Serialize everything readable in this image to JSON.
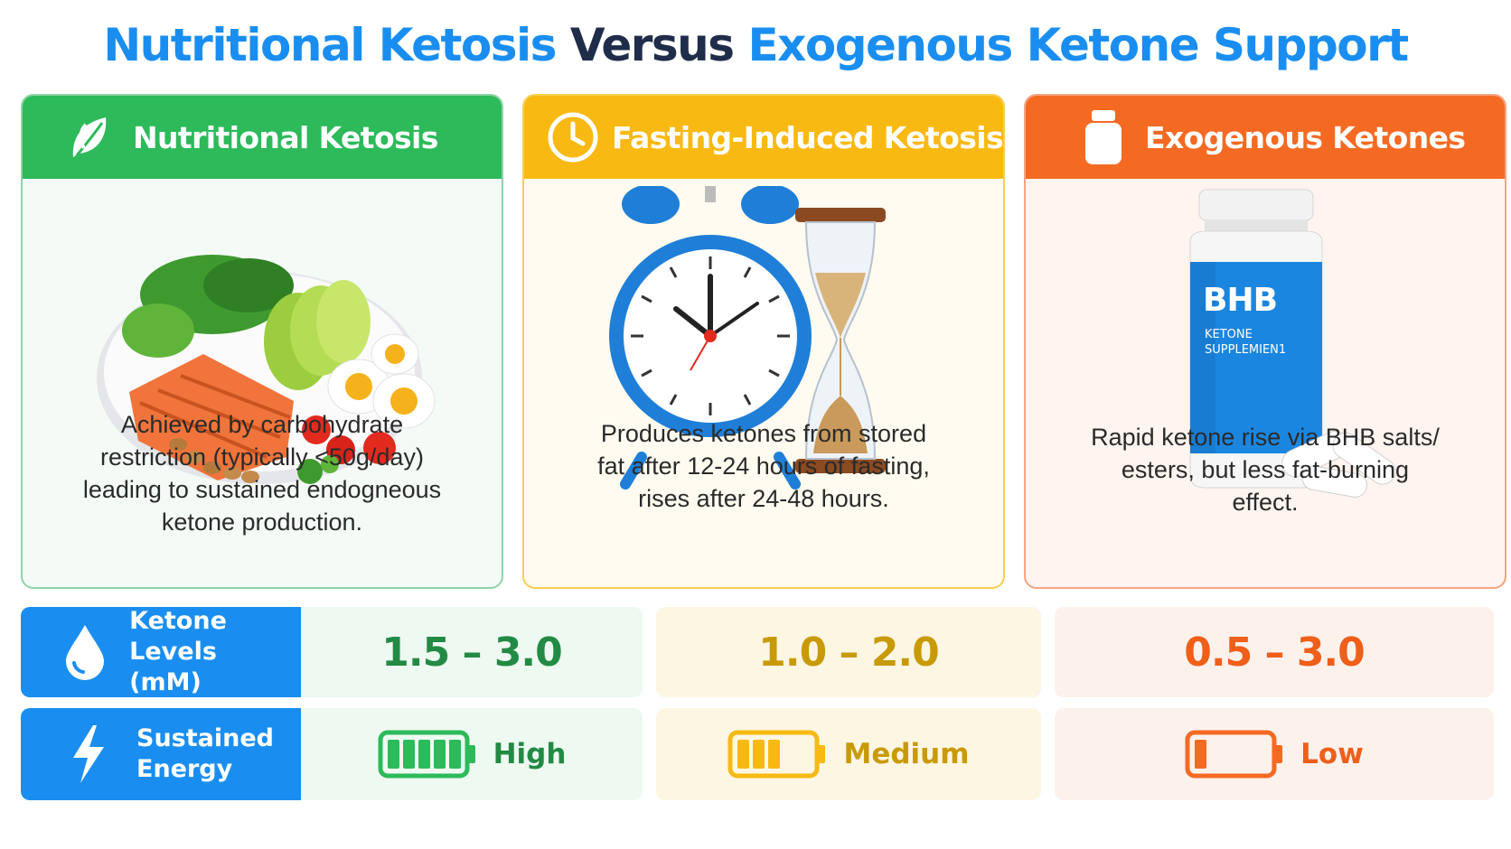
{
  "title": {
    "part1": "Nutritional Ketosis",
    "part2": "Versus",
    "part3": "Exogenous Ketone Support"
  },
  "cards": [
    {
      "header": "Nutritional Ketosis",
      "icon": "leaf-icon",
      "description_lines": [
        "Achieved by carbohydrate",
        "restriction (typically <50g/day)",
        "leading to sustained endogneous",
        "ketone production."
      ]
    },
    {
      "header": "Fasting-Induced Ketosis",
      "icon": "clock-icon",
      "description_lines": [
        "Produces ketones from stored",
        "fat after 12-24 hours of fasting,",
        "rises after 24-48 hours."
      ]
    },
    {
      "header": "Exogenous Ketones",
      "icon": "supplement-bottle-icon",
      "bottle_label": "BHB",
      "bottle_sublabel1": "KETONE",
      "bottle_sublabel2": "SUPPLEMIEN1",
      "description_lines": [
        "Rapid ketone rise via BHB salts/",
        "esters, but less fat-burning",
        "effect."
      ]
    }
  ],
  "rows": {
    "ketone_levels": {
      "label_line1": "Ketone Levels",
      "label_line2": "(mM)",
      "icon": "water-drop-icon",
      "values": [
        "1.5 – 3.0",
        "1.0 – 2.0",
        "0.5 – 3.0"
      ]
    },
    "sustained_energy": {
      "label_line1": "Sustained",
      "label_line2": "Energy",
      "icon": "lightning-bolt-icon",
      "levels": [
        "High",
        "Medium",
        "Low"
      ],
      "battery_fill_fraction": [
        1.0,
        0.6,
        0.2
      ]
    }
  },
  "colors": {
    "blue": "#1a8ef0",
    "green": "#2dba5a",
    "yellow": "#f8b912",
    "orange": "#f56a23",
    "dark_navy": "#1f2d4a"
  }
}
